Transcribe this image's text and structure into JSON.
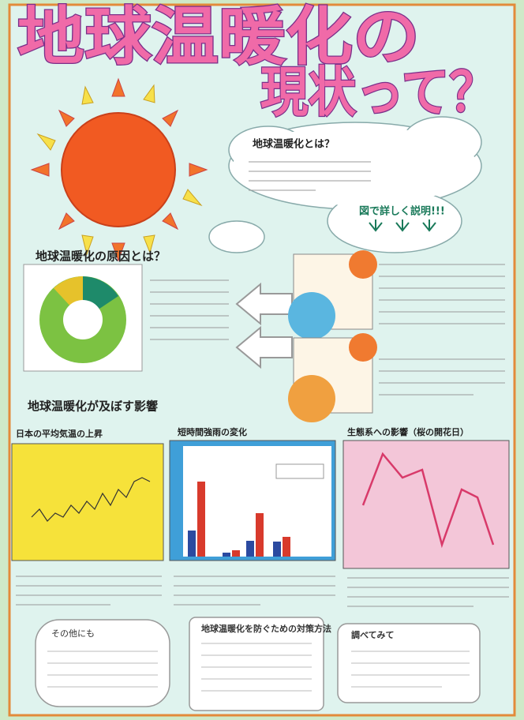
{
  "title": {
    "line1": "地球温暖化の",
    "line2": "現状って？"
  },
  "cloud": {
    "heading": "地球温暖化とは？",
    "note": "図で詳しく説明!!!"
  },
  "causes": {
    "heading": "地球温暖化の原因とは？"
  },
  "effects": {
    "heading": "地球温暖化が及ぼす影響",
    "panels": [
      "日本の平均気温の上昇",
      "短時間強雨の変化",
      "生態系への影響（桜の開花日）"
    ]
  },
  "boxes": [
    "その他にも",
    "地球温暖化を防ぐための対策方法",
    "調べてみて"
  ]
}
